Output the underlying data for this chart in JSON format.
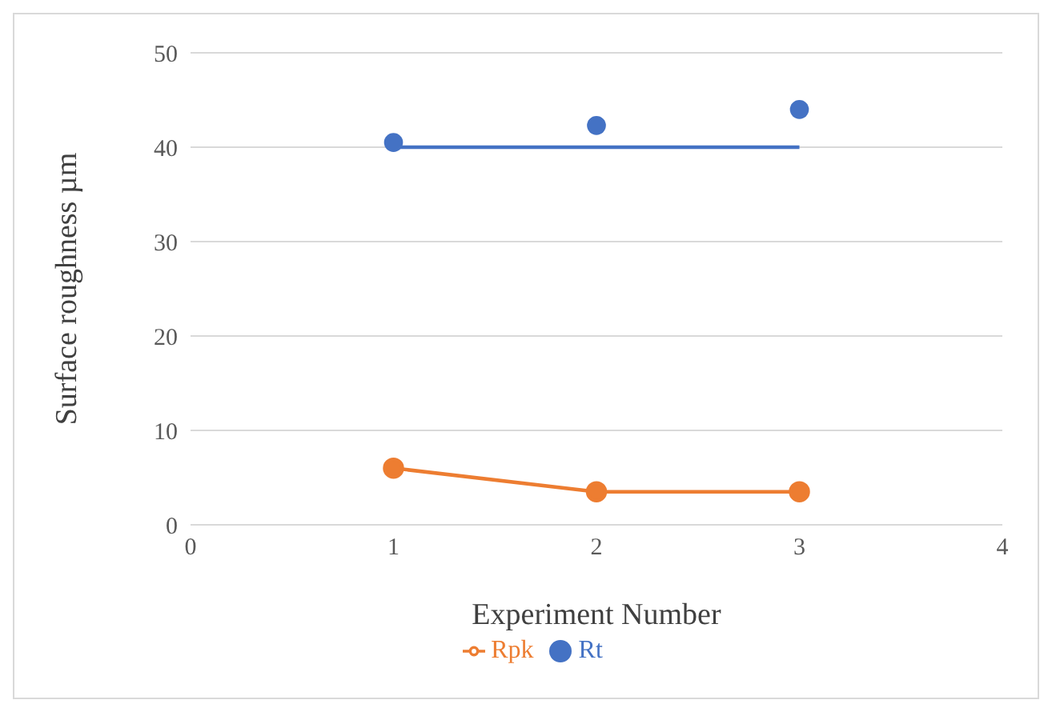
{
  "chart_data": {
    "type": "line",
    "xlabel": "Experiment Number",
    "ylabel": "Surface roughness µm",
    "xlim": [
      0,
      4
    ],
    "xticks": [
      0,
      1,
      2,
      3,
      4
    ],
    "ylim": [
      0,
      50
    ],
    "yticks": [
      0,
      10,
      20,
      30,
      40,
      50
    ],
    "grid": "y",
    "legend": "bottom",
    "marker": "circle",
    "series": [
      {
        "name": "Rt",
        "type": "scatter",
        "color": "#4472c4",
        "x": [
          1,
          2,
          3
        ],
        "values": [
          40.5,
          42.3,
          44
        ]
      },
      {
        "type": "line",
        "color": "#4472c4",
        "x": [
          1,
          3
        ],
        "values": [
          40,
          40
        ],
        "marker": "none"
      },
      {
        "name": "Rpk",
        "color": "#ed7d31",
        "x": [
          1,
          2,
          3
        ],
        "values": [
          6,
          3.5,
          3.5
        ]
      }
    ]
  }
}
